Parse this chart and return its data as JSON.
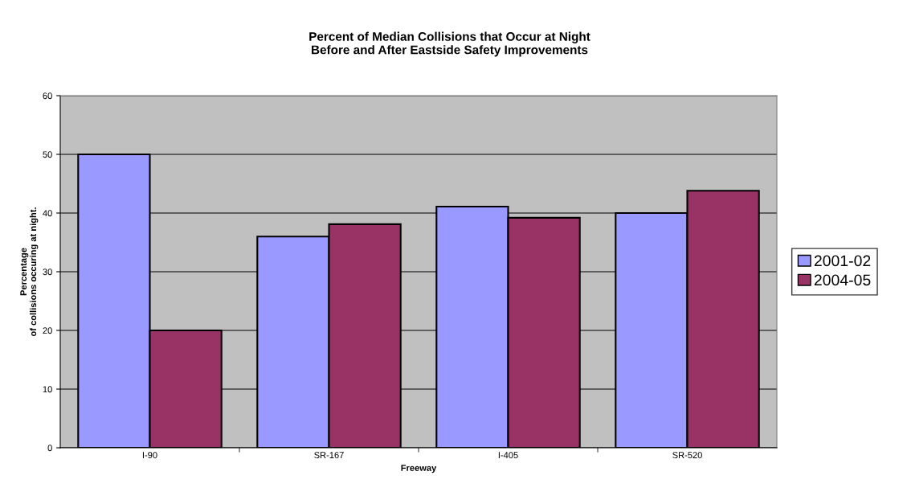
{
  "chart_data": {
    "type": "bar",
    "title": "Percent of Median Collisions that Occur at Night\nBefore and After Eastside Safety Improvements",
    "xlabel": "Freeway",
    "ylabel": "Percentage\nof collisions occuring at night.",
    "categories": [
      "I-90",
      "SR-167",
      "I-405",
      "SR-520"
    ],
    "series": [
      {
        "name": "2001-02",
        "color": "#9999ff",
        "values": [
          50,
          36.0,
          41.1,
          40.0
        ]
      },
      {
        "name": "2004-05",
        "color": "#993366",
        "values": [
          20,
          38.1,
          39.2,
          43.8
        ]
      }
    ],
    "ylim": [
      0,
      60
    ],
    "yticks": [
      0,
      10,
      20,
      30,
      40,
      50,
      60
    ],
    "grid": "y",
    "legend": "right"
  }
}
